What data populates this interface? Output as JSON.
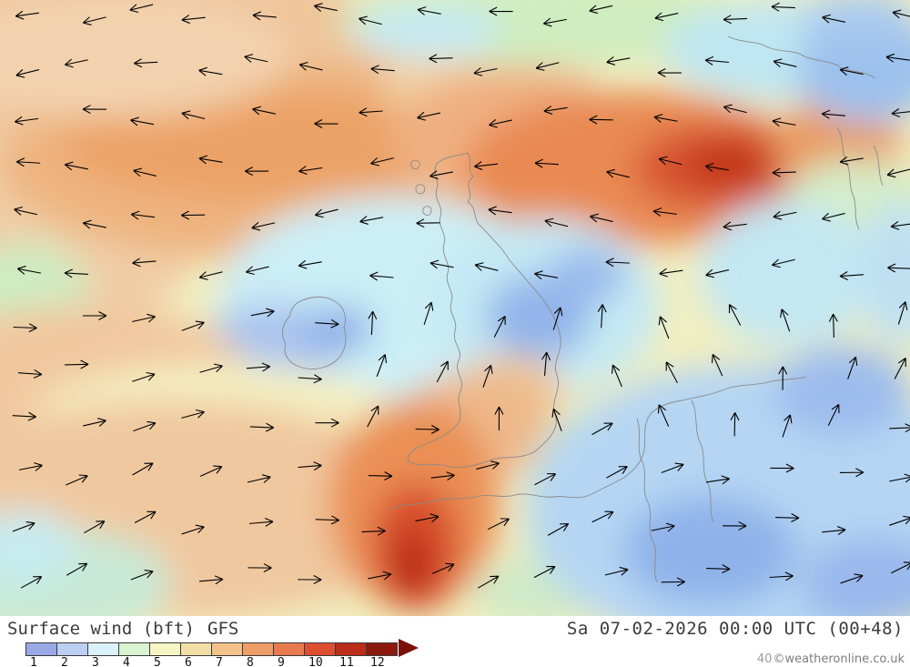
{
  "footer": {
    "product_label": "Surface wind (bft)",
    "model_label": "GFS",
    "valid_time": "Sa 07-02-2026 00:00 UTC (00+48)",
    "watermark_number": "40",
    "copyright": "©weatheronline.co.uk"
  },
  "legend": {
    "unit": "bft",
    "ticks": [
      1,
      2,
      3,
      4,
      5,
      6,
      7,
      8,
      9,
      10,
      11,
      12
    ],
    "colors": [
      "#9aa9e6",
      "#bccff2",
      "#dbf1fa",
      "#d9f2cf",
      "#f6f5c4",
      "#f2dfa6",
      "#f3c28c",
      "#ee9e68",
      "#e87a50",
      "#dd4e30",
      "#bb2c1a",
      "#8c1a0e"
    ],
    "arrow_color": "#7a120a"
  },
  "map": {
    "type": "filled-contour surface wind field with direction arrows",
    "arrow_color": "#000000",
    "coastline_color": "#8a8a8a"
  }
}
